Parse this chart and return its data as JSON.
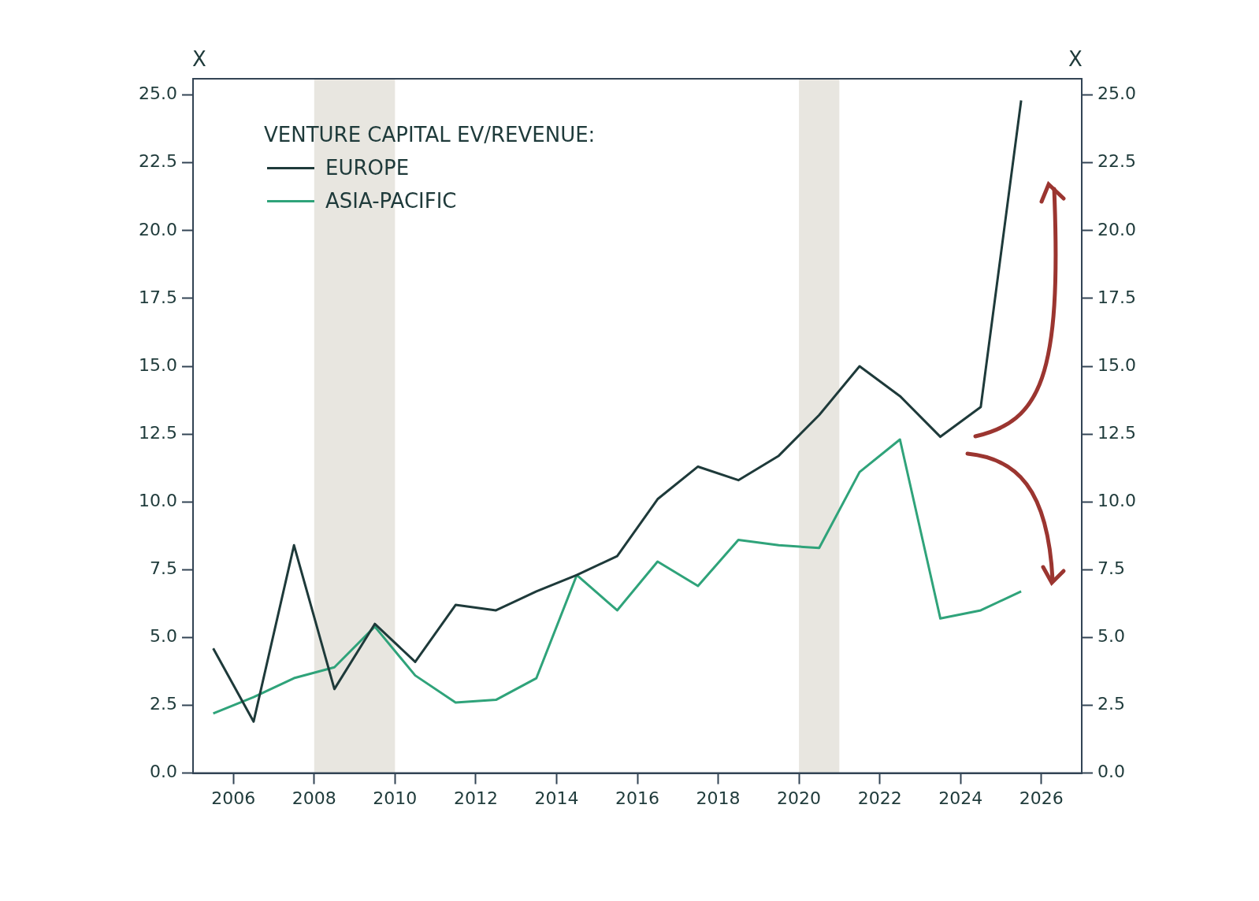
{
  "chart_data": {
    "type": "line",
    "ylabel": "X",
    "y2label": "X",
    "legend_title": "VENTURE CAPITAL EV/REVENUE:",
    "x": [
      2005.5,
      2006.5,
      2007.5,
      2008.5,
      2009.5,
      2010.5,
      2011.5,
      2012.5,
      2013.5,
      2014.5,
      2015.5,
      2016.5,
      2017.5,
      2018.5,
      2019.5,
      2020.5,
      2021.5,
      2022.5,
      2023.5,
      2024.5,
      2025.5
    ],
    "series": [
      {
        "name": "EUROPE",
        "color": "#1e3a3a",
        "values": [
          4.6,
          1.9,
          8.4,
          3.1,
          5.5,
          4.1,
          6.2,
          6.0,
          6.7,
          7.3,
          8.0,
          10.1,
          11.3,
          10.8,
          11.7,
          13.2,
          15.0,
          13.9,
          12.4,
          13.5,
          24.8
        ]
      },
      {
        "name": "ASIA-PACIFIC",
        "color": "#2fa37a",
        "values": [
          2.2,
          2.8,
          3.5,
          3.9,
          5.4,
          3.6,
          2.6,
          2.7,
          3.5,
          7.3,
          6.0,
          7.8,
          6.9,
          8.6,
          8.4,
          8.3,
          11.1,
          12.3,
          5.7,
          6.0,
          6.7
        ]
      }
    ],
    "xlim": [
      2005,
      2027
    ],
    "xticks": [
      2006,
      2008,
      2010,
      2012,
      2014,
      2016,
      2018,
      2020,
      2022,
      2024,
      2026
    ],
    "ylim": [
      0,
      25.6
    ],
    "yticks": [
      {
        "value": 0,
        "label": "0.0"
      },
      2.5,
      {
        "value": 5,
        "label": "5.0"
      },
      7.5,
      {
        "value": 10,
        "label": "10.0"
      },
      12.5,
      {
        "value": 15,
        "label": "15.0"
      },
      17.5,
      {
        "value": 20,
        "label": "20.0"
      },
      22.5,
      {
        "value": 25,
        "label": "25.0"
      }
    ],
    "y2lim": [
      0,
      25.6
    ],
    "y2ticks": [
      {
        "value": 0,
        "label": "0.0"
      },
      2.5,
      {
        "value": 5,
        "label": "5.0"
      },
      7.5,
      {
        "value": 10,
        "label": "10.0"
      },
      12.5,
      {
        "value": 15,
        "label": "15.0"
      },
      17.5,
      {
        "value": 20,
        "label": "20.0"
      },
      22.5,
      {
        "value": 25,
        "label": "25.0"
      }
    ],
    "bands": [
      {
        "axis": "x",
        "from": 2008,
        "to": 2010,
        "color": "#e8e6e0"
      },
      {
        "axis": "x",
        "from": 2020,
        "to": 2021,
        "color": "#e8e6e0"
      }
    ],
    "grid": false,
    "legend": "top left",
    "marker": "none",
    "line_style": "solid"
  }
}
